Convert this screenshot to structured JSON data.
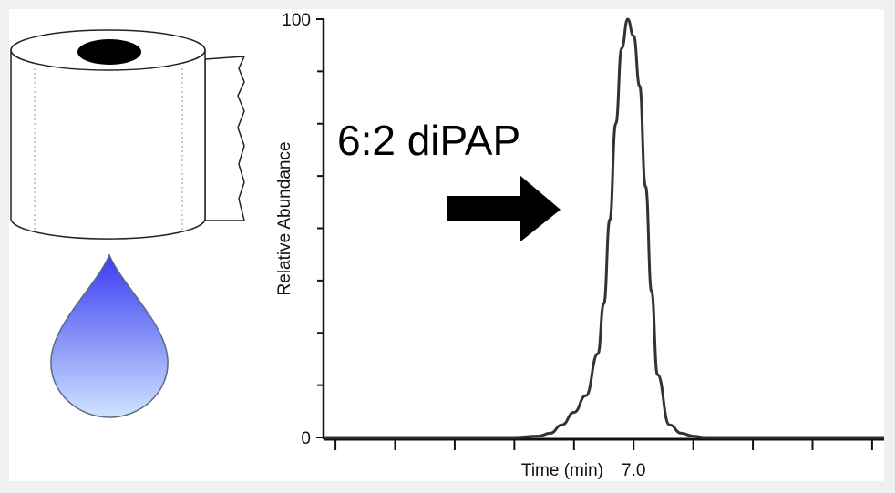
{
  "illustrations": {
    "paper_roll_icon": "toilet-paper-roll-icon",
    "water_drop_icon": "water-drop-icon",
    "arrow_icon": "right-arrow-icon",
    "drop_colors": {
      "top": "#3a3cf0",
      "bottom": "#cfe4ff"
    }
  },
  "annotation": {
    "label": "6:2 diPAP"
  },
  "chart_data": {
    "type": "line",
    "title": "",
    "ylabel": "Relative Abundance",
    "xlabel": "Time (min)",
    "xlim": [
      4.4,
      9.1
    ],
    "ylim": [
      0,
      100
    ],
    "y_tick_labels": [
      {
        "value": 100,
        "label": "100"
      },
      {
        "value": 0,
        "label": "0"
      }
    ],
    "y_minor_ticks": [
      12.5,
      25,
      37.5,
      50,
      62.5,
      75,
      87.5
    ],
    "x_tick_labels": [
      {
        "value": 7.0,
        "label": "7.0"
      }
    ],
    "x_minor_ticks": [
      4.5,
      5.0,
      5.5,
      6.0,
      6.5,
      7.0,
      7.5,
      8.0,
      8.5,
      9.0
    ],
    "series": [
      {
        "color": "#333333",
        "x": [
          4.4,
          5.0,
          5.5,
          6.0,
          6.2,
          6.3,
          6.4,
          6.5,
          6.6,
          6.7,
          6.75,
          6.8,
          6.85,
          6.9,
          6.95,
          7.0,
          7.05,
          7.1,
          7.15,
          7.2,
          7.3,
          7.4,
          7.5,
          7.6,
          8.0,
          8.5,
          9.1
        ],
        "y": [
          0,
          0,
          0,
          0,
          0.3,
          1,
          3,
          6,
          10,
          20,
          32,
          52,
          75,
          93,
          100,
          96,
          84,
          60,
          35,
          15,
          3,
          1,
          0.3,
          0,
          0,
          0,
          0
        ]
      }
    ]
  }
}
